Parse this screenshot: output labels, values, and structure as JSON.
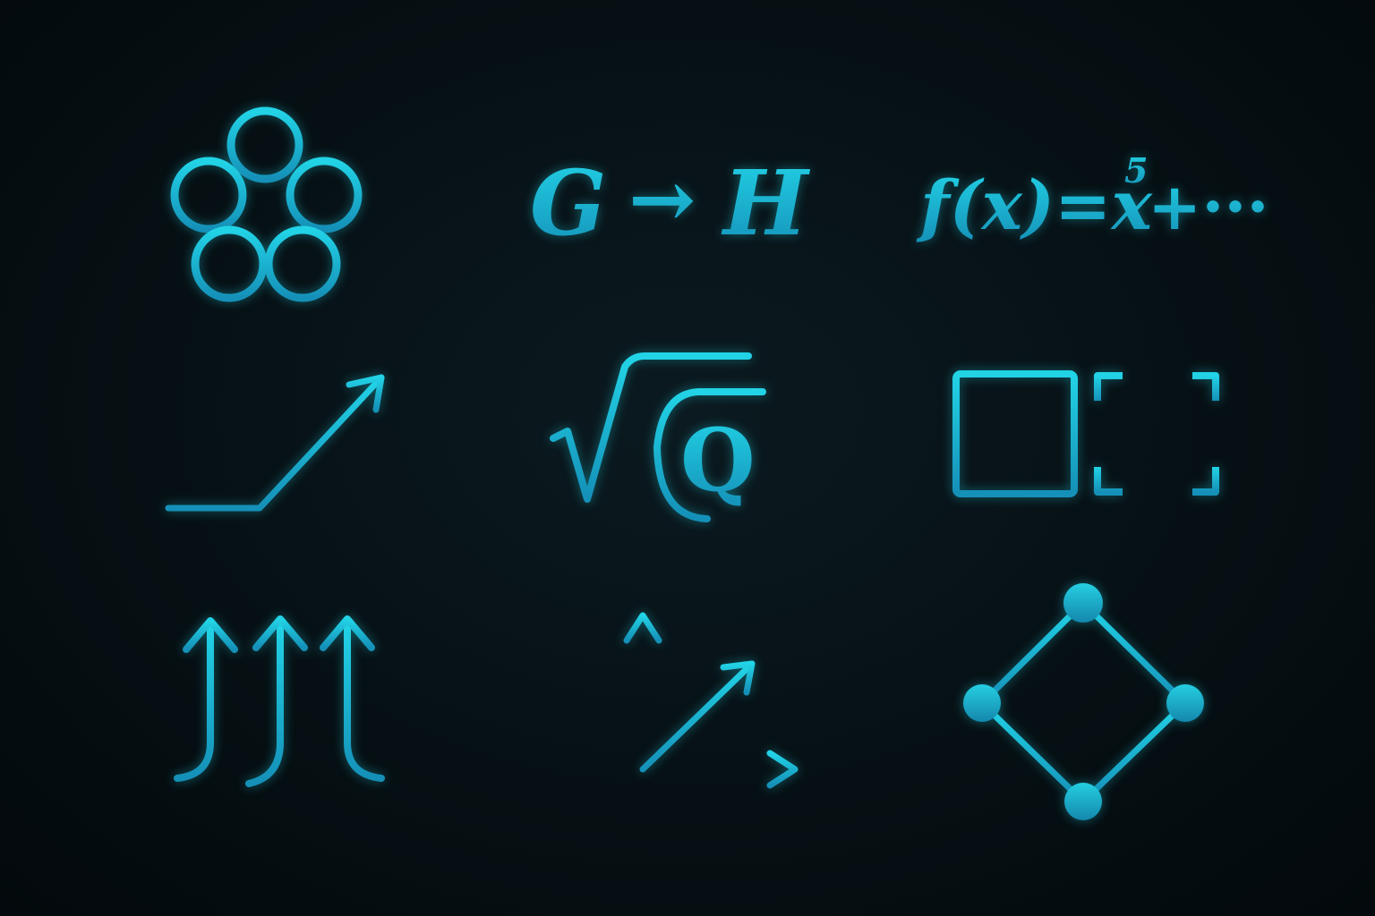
{
  "colors": {
    "accent_top": "#22d3e6",
    "accent_bottom": "#1590b8",
    "background": "#050d11"
  },
  "icons": [
    {
      "name": "five-circles-icon"
    },
    {
      "name": "homomorphism-icon",
      "left": "G",
      "arrow": "→",
      "right": "H"
    },
    {
      "name": "polynomial-icon",
      "text": "f(x)=x",
      "exponent": "5",
      "tail": "+···"
    },
    {
      "name": "ramp-arrow-icon"
    },
    {
      "name": "sqrt-q-icon",
      "radicand": "Q"
    },
    {
      "name": "grid-matrices-icon"
    },
    {
      "name": "triple-up-arrows-icon"
    },
    {
      "name": "axes-3d-icon"
    },
    {
      "name": "diamond-graph-icon"
    }
  ]
}
